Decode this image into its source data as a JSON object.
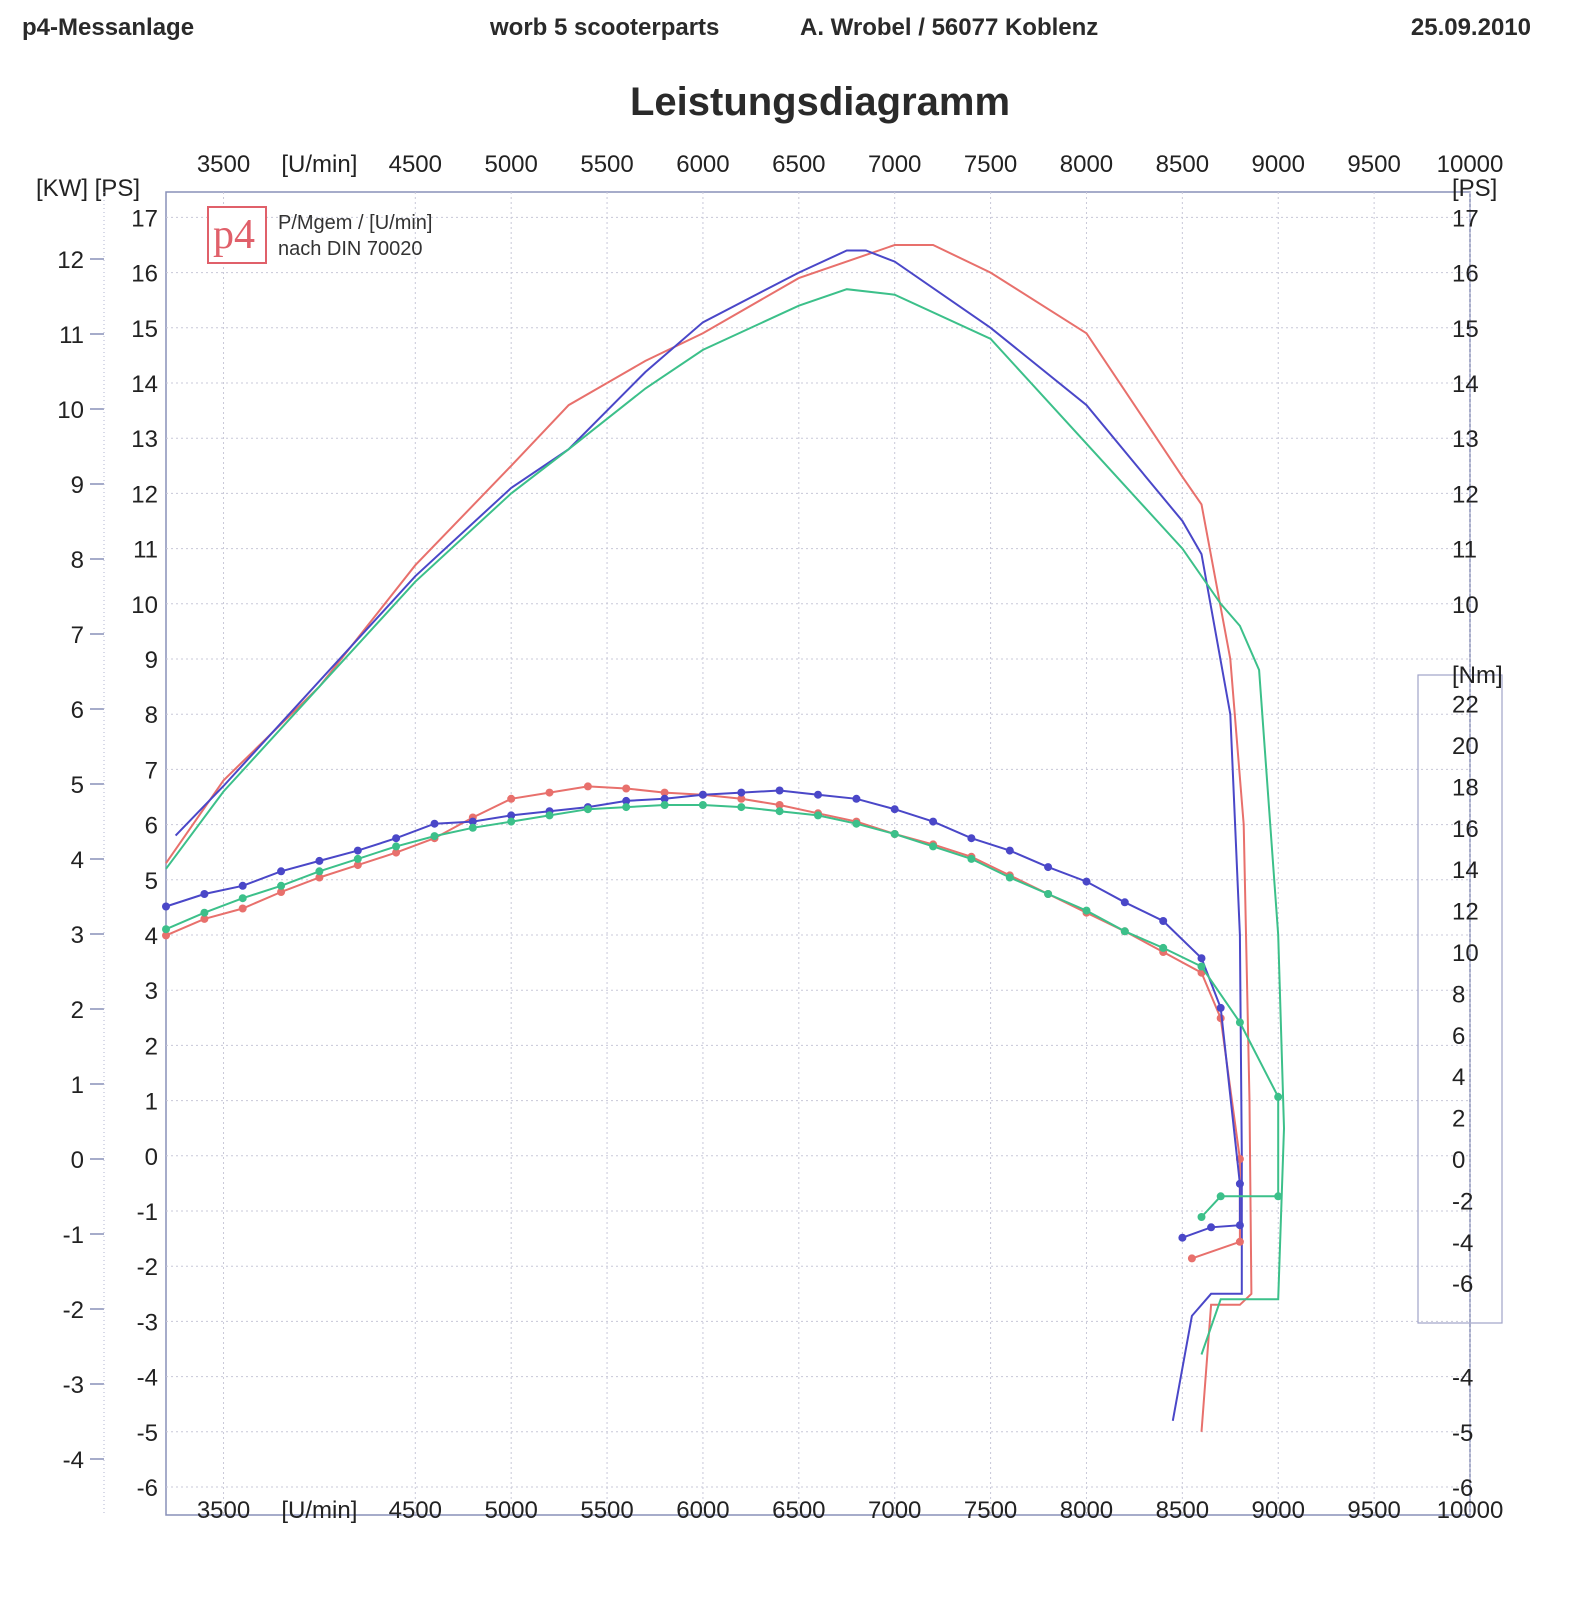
{
  "header": {
    "left": "p4-Messanlage",
    "middle1": "worb 5 scooterparts",
    "middle2": "A. Wrobel / 56077 Koblenz",
    "date": "25.09.2010"
  },
  "title": "Leistungsdiagramm",
  "legend": {
    "logo_text": "p4",
    "line1": "P/Mgem / [U/min]",
    "line2": "nach DIN 70020"
  },
  "chart_data": {
    "type": "line",
    "x_label": "[U/min]",
    "x_ticks": [
      3500,
      4500,
      5000,
      5500,
      6000,
      6500,
      7000,
      7500,
      8000,
      8500,
      9000,
      9500,
      10000
    ],
    "xlim": [
      3200,
      10000
    ],
    "axes": {
      "kw": {
        "label": "[KW]",
        "ticks": [
          -4,
          -3,
          -2,
          -1,
          0,
          1,
          2,
          3,
          4,
          5,
          6,
          7,
          8,
          9,
          10,
          11,
          12
        ]
      },
      "ps": {
        "label": "[PS]",
        "ticks": [
          -6,
          -5,
          -4,
          -3,
          -2,
          -1,
          0,
          1,
          2,
          3,
          4,
          5,
          6,
          7,
          8,
          9,
          10,
          11,
          12,
          13,
          14,
          15,
          16,
          17
        ],
        "ylim": [
          -6,
          17.9
        ]
      },
      "ps_right_lower": {
        "ticks": [
          -6,
          -5,
          -4
        ]
      },
      "nm": {
        "label": "[Nm]",
        "ticks": [
          -6,
          -4,
          -2,
          0,
          2,
          4,
          6,
          8,
          10,
          12,
          14,
          16,
          18,
          20,
          22
        ]
      }
    },
    "colors": {
      "red": "#e8706c",
      "blue": "#4a47c8",
      "green": "#3cc08a"
    },
    "power_series": [
      {
        "color": "red",
        "points": [
          [
            3200,
            5.3
          ],
          [
            3500,
            6.8
          ],
          [
            4000,
            8.5
          ],
          [
            4500,
            10.7
          ],
          [
            5000,
            12.5
          ],
          [
            5300,
            13.6
          ],
          [
            5700,
            14.4
          ],
          [
            6000,
            14.9
          ],
          [
            6500,
            15.9
          ],
          [
            7000,
            16.5
          ],
          [
            7200,
            16.5
          ],
          [
            7500,
            16.0
          ],
          [
            8000,
            14.9
          ],
          [
            8500,
            12.3
          ],
          [
            8600,
            11.8
          ],
          [
            8750,
            9.0
          ],
          [
            8820,
            6.0
          ],
          [
            8850,
            1.0
          ],
          [
            8860,
            -2.5
          ],
          [
            8800,
            -2.7
          ],
          [
            8650,
            -2.7
          ],
          [
            8600,
            -5.0
          ]
        ]
      },
      {
        "color": "blue",
        "points": [
          [
            3250,
            5.8
          ],
          [
            3500,
            6.7
          ],
          [
            4000,
            8.6
          ],
          [
            4500,
            10.5
          ],
          [
            5000,
            12.1
          ],
          [
            5300,
            12.8
          ],
          [
            5700,
            14.2
          ],
          [
            6000,
            15.1
          ],
          [
            6500,
            16.0
          ],
          [
            6750,
            16.4
          ],
          [
            6850,
            16.4
          ],
          [
            7000,
            16.2
          ],
          [
            7500,
            15.0
          ],
          [
            8000,
            13.6
          ],
          [
            8500,
            11.5
          ],
          [
            8600,
            10.9
          ],
          [
            8750,
            8.0
          ],
          [
            8800,
            4.0
          ],
          [
            8810,
            0.0
          ],
          [
            8810,
            -2.5
          ],
          [
            8650,
            -2.5
          ],
          [
            8550,
            -2.9
          ],
          [
            8450,
            -4.8
          ]
        ]
      },
      {
        "color": "green",
        "points": [
          [
            3200,
            5.2
          ],
          [
            3500,
            6.6
          ],
          [
            4000,
            8.5
          ],
          [
            4500,
            10.4
          ],
          [
            5000,
            12.0
          ],
          [
            5300,
            12.8
          ],
          [
            5700,
            13.9
          ],
          [
            6000,
            14.6
          ],
          [
            6500,
            15.4
          ],
          [
            6750,
            15.7
          ],
          [
            7000,
            15.6
          ],
          [
            7500,
            14.8
          ],
          [
            8000,
            12.9
          ],
          [
            8500,
            11.0
          ],
          [
            8700,
            10.0
          ],
          [
            8800,
            9.6
          ],
          [
            8900,
            8.8
          ],
          [
            9000,
            4.0
          ],
          [
            9030,
            0.5
          ],
          [
            9000,
            -2.6
          ],
          [
            8700,
            -2.6
          ],
          [
            8600,
            -3.6
          ]
        ]
      }
    ],
    "torque_series": [
      {
        "color": "red",
        "points": [
          [
            3200,
            10.8
          ],
          [
            3400,
            11.6
          ],
          [
            3600,
            12.1
          ],
          [
            3800,
            12.9
          ],
          [
            4000,
            13.6
          ],
          [
            4200,
            14.2
          ],
          [
            4400,
            14.8
          ],
          [
            4600,
            15.5
          ],
          [
            4800,
            16.5
          ],
          [
            5000,
            17.4
          ],
          [
            5200,
            17.7
          ],
          [
            5400,
            18.0
          ],
          [
            5600,
            17.9
          ],
          [
            5800,
            17.7
          ],
          [
            6000,
            17.6
          ],
          [
            6200,
            17.4
          ],
          [
            6400,
            17.1
          ],
          [
            6600,
            16.7
          ],
          [
            6800,
            16.3
          ],
          [
            7000,
            15.7
          ],
          [
            7200,
            15.2
          ],
          [
            7400,
            14.6
          ],
          [
            7600,
            13.7
          ],
          [
            7800,
            12.8
          ],
          [
            8000,
            11.9
          ],
          [
            8200,
            11.0
          ],
          [
            8400,
            10.0
          ],
          [
            8600,
            9.0
          ],
          [
            8700,
            6.8
          ],
          [
            8800,
            0.0
          ],
          [
            8800,
            -4.0
          ],
          [
            8550,
            -4.8
          ]
        ]
      },
      {
        "color": "blue",
        "points": [
          [
            3200,
            12.2
          ],
          [
            3400,
            12.8
          ],
          [
            3600,
            13.2
          ],
          [
            3800,
            13.9
          ],
          [
            4000,
            14.4
          ],
          [
            4200,
            14.9
          ],
          [
            4400,
            15.5
          ],
          [
            4600,
            16.2
          ],
          [
            4800,
            16.3
          ],
          [
            5000,
            16.6
          ],
          [
            5200,
            16.8
          ],
          [
            5400,
            17.0
          ],
          [
            5600,
            17.3
          ],
          [
            5800,
            17.4
          ],
          [
            6000,
            17.6
          ],
          [
            6200,
            17.7
          ],
          [
            6400,
            17.8
          ],
          [
            6600,
            17.6
          ],
          [
            6800,
            17.4
          ],
          [
            7000,
            16.9
          ],
          [
            7200,
            16.3
          ],
          [
            7400,
            15.5
          ],
          [
            7600,
            14.9
          ],
          [
            7800,
            14.1
          ],
          [
            8000,
            13.4
          ],
          [
            8200,
            12.4
          ],
          [
            8400,
            11.5
          ],
          [
            8600,
            9.7
          ],
          [
            8700,
            7.3
          ],
          [
            8800,
            -1.2
          ],
          [
            8800,
            -3.2
          ],
          [
            8650,
            -3.3
          ],
          [
            8500,
            -3.8
          ]
        ]
      },
      {
        "color": "green",
        "points": [
          [
            3200,
            11.1
          ],
          [
            3400,
            11.9
          ],
          [
            3600,
            12.6
          ],
          [
            3800,
            13.2
          ],
          [
            4000,
            13.9
          ],
          [
            4200,
            14.5
          ],
          [
            4400,
            15.1
          ],
          [
            4600,
            15.6
          ],
          [
            4800,
            16.0
          ],
          [
            5000,
            16.3
          ],
          [
            5200,
            16.6
          ],
          [
            5400,
            16.9
          ],
          [
            5600,
            17.0
          ],
          [
            5800,
            17.1
          ],
          [
            6000,
            17.1
          ],
          [
            6200,
            17.0
          ],
          [
            6400,
            16.8
          ],
          [
            6600,
            16.6
          ],
          [
            6800,
            16.2
          ],
          [
            7000,
            15.7
          ],
          [
            7200,
            15.1
          ],
          [
            7400,
            14.5
          ],
          [
            7600,
            13.6
          ],
          [
            7800,
            12.8
          ],
          [
            8000,
            12.0
          ],
          [
            8200,
            11.0
          ],
          [
            8400,
            10.2
          ],
          [
            8600,
            9.3
          ],
          [
            8800,
            6.6
          ],
          [
            9000,
            3.0
          ],
          [
            9000,
            -1.8
          ],
          [
            8700,
            -1.8
          ],
          [
            8600,
            -2.8
          ]
        ]
      }
    ]
  }
}
